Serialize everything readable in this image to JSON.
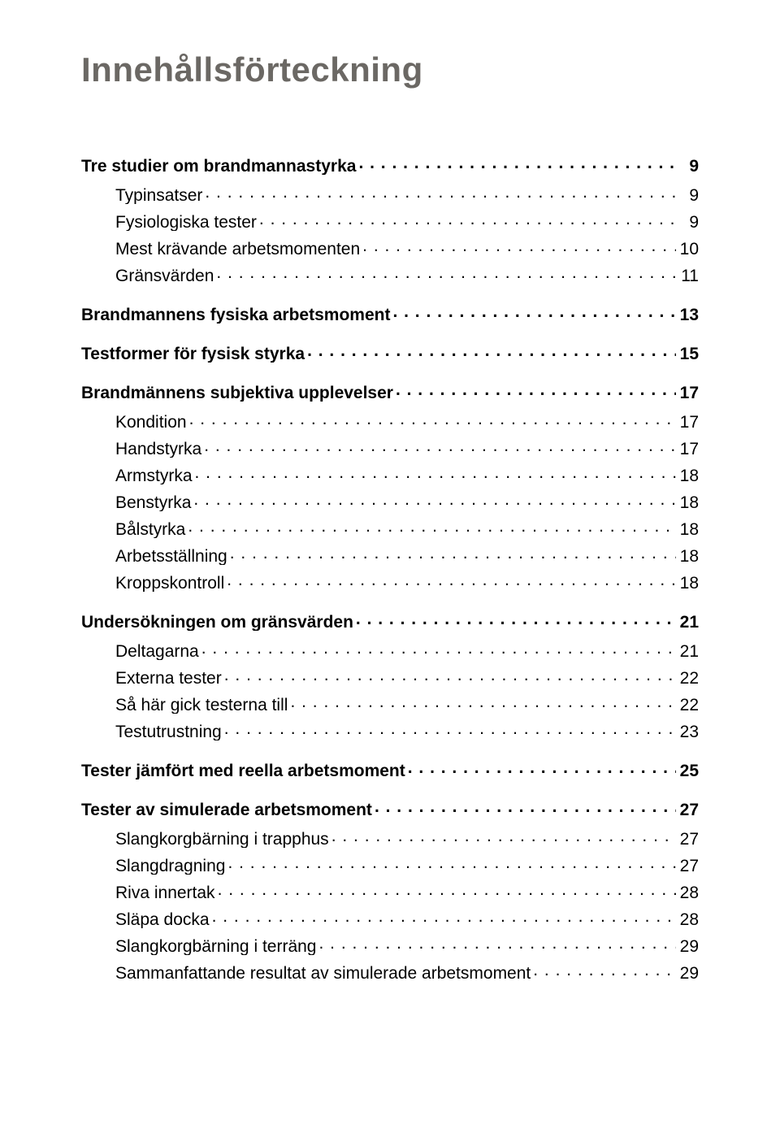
{
  "title": "Innehållsförteckning",
  "title_color": "#6b6864",
  "title_fontsize": 42,
  "entry_fontsize": 21,
  "toc": [
    {
      "level": 0,
      "label": "Tre studier om brandmannastyrka",
      "page": "9"
    },
    {
      "level": 1,
      "label": "Typinsatser",
      "page": "9"
    },
    {
      "level": 1,
      "label": "Fysiologiska tester",
      "page": "9"
    },
    {
      "level": 1,
      "label": "Mest krävande arbetsmomenten",
      "page": "10"
    },
    {
      "level": 1,
      "label": "Gränsvärden",
      "page": "11"
    },
    {
      "level": 0,
      "label": "Brandmannens fysiska arbetsmoment",
      "page": "13"
    },
    {
      "level": 0,
      "label": "Testformer för fysisk styrka",
      "page": "15"
    },
    {
      "level": 0,
      "label": "Brandmännens subjektiva upplevelser",
      "page": "17"
    },
    {
      "level": 1,
      "label": "Kondition",
      "page": "17"
    },
    {
      "level": 1,
      "label": "Handstyrka",
      "page": "17"
    },
    {
      "level": 1,
      "label": "Armstyrka",
      "page": "18"
    },
    {
      "level": 1,
      "label": "Benstyrka",
      "page": "18"
    },
    {
      "level": 1,
      "label": "Bålstyrka",
      "page": "18"
    },
    {
      "level": 1,
      "label": "Arbetsställning",
      "page": "18"
    },
    {
      "level": 1,
      "label": "Kroppskontroll",
      "page": "18"
    },
    {
      "level": 0,
      "label": "Undersökningen om gränsvärden",
      "page": "21"
    },
    {
      "level": 1,
      "label": "Deltagarna",
      "page": "21"
    },
    {
      "level": 1,
      "label": "Externa tester",
      "page": "22"
    },
    {
      "level": 1,
      "label": "Så här gick testerna till",
      "page": "22"
    },
    {
      "level": 1,
      "label": "Testutrustning",
      "page": "23"
    },
    {
      "level": 0,
      "label": "Tester jämfört med reella arbetsmoment",
      "page": "25"
    },
    {
      "level": 0,
      "label": "Tester av simulerade arbetsmoment",
      "page": "27"
    },
    {
      "level": 1,
      "label": "Slangkorgbärning i trapphus",
      "page": "27"
    },
    {
      "level": 1,
      "label": "Slangdragning",
      "page": "27"
    },
    {
      "level": 1,
      "label": "Riva innertak",
      "page": "28"
    },
    {
      "level": 1,
      "label": "Släpa docka",
      "page": "28"
    },
    {
      "level": 1,
      "label": "Slangkorgbärning i terräng",
      "page": "29"
    },
    {
      "level": 1,
      "label": "Sammanfattande resultat av simulerade arbetsmoment",
      "page": "29"
    }
  ]
}
